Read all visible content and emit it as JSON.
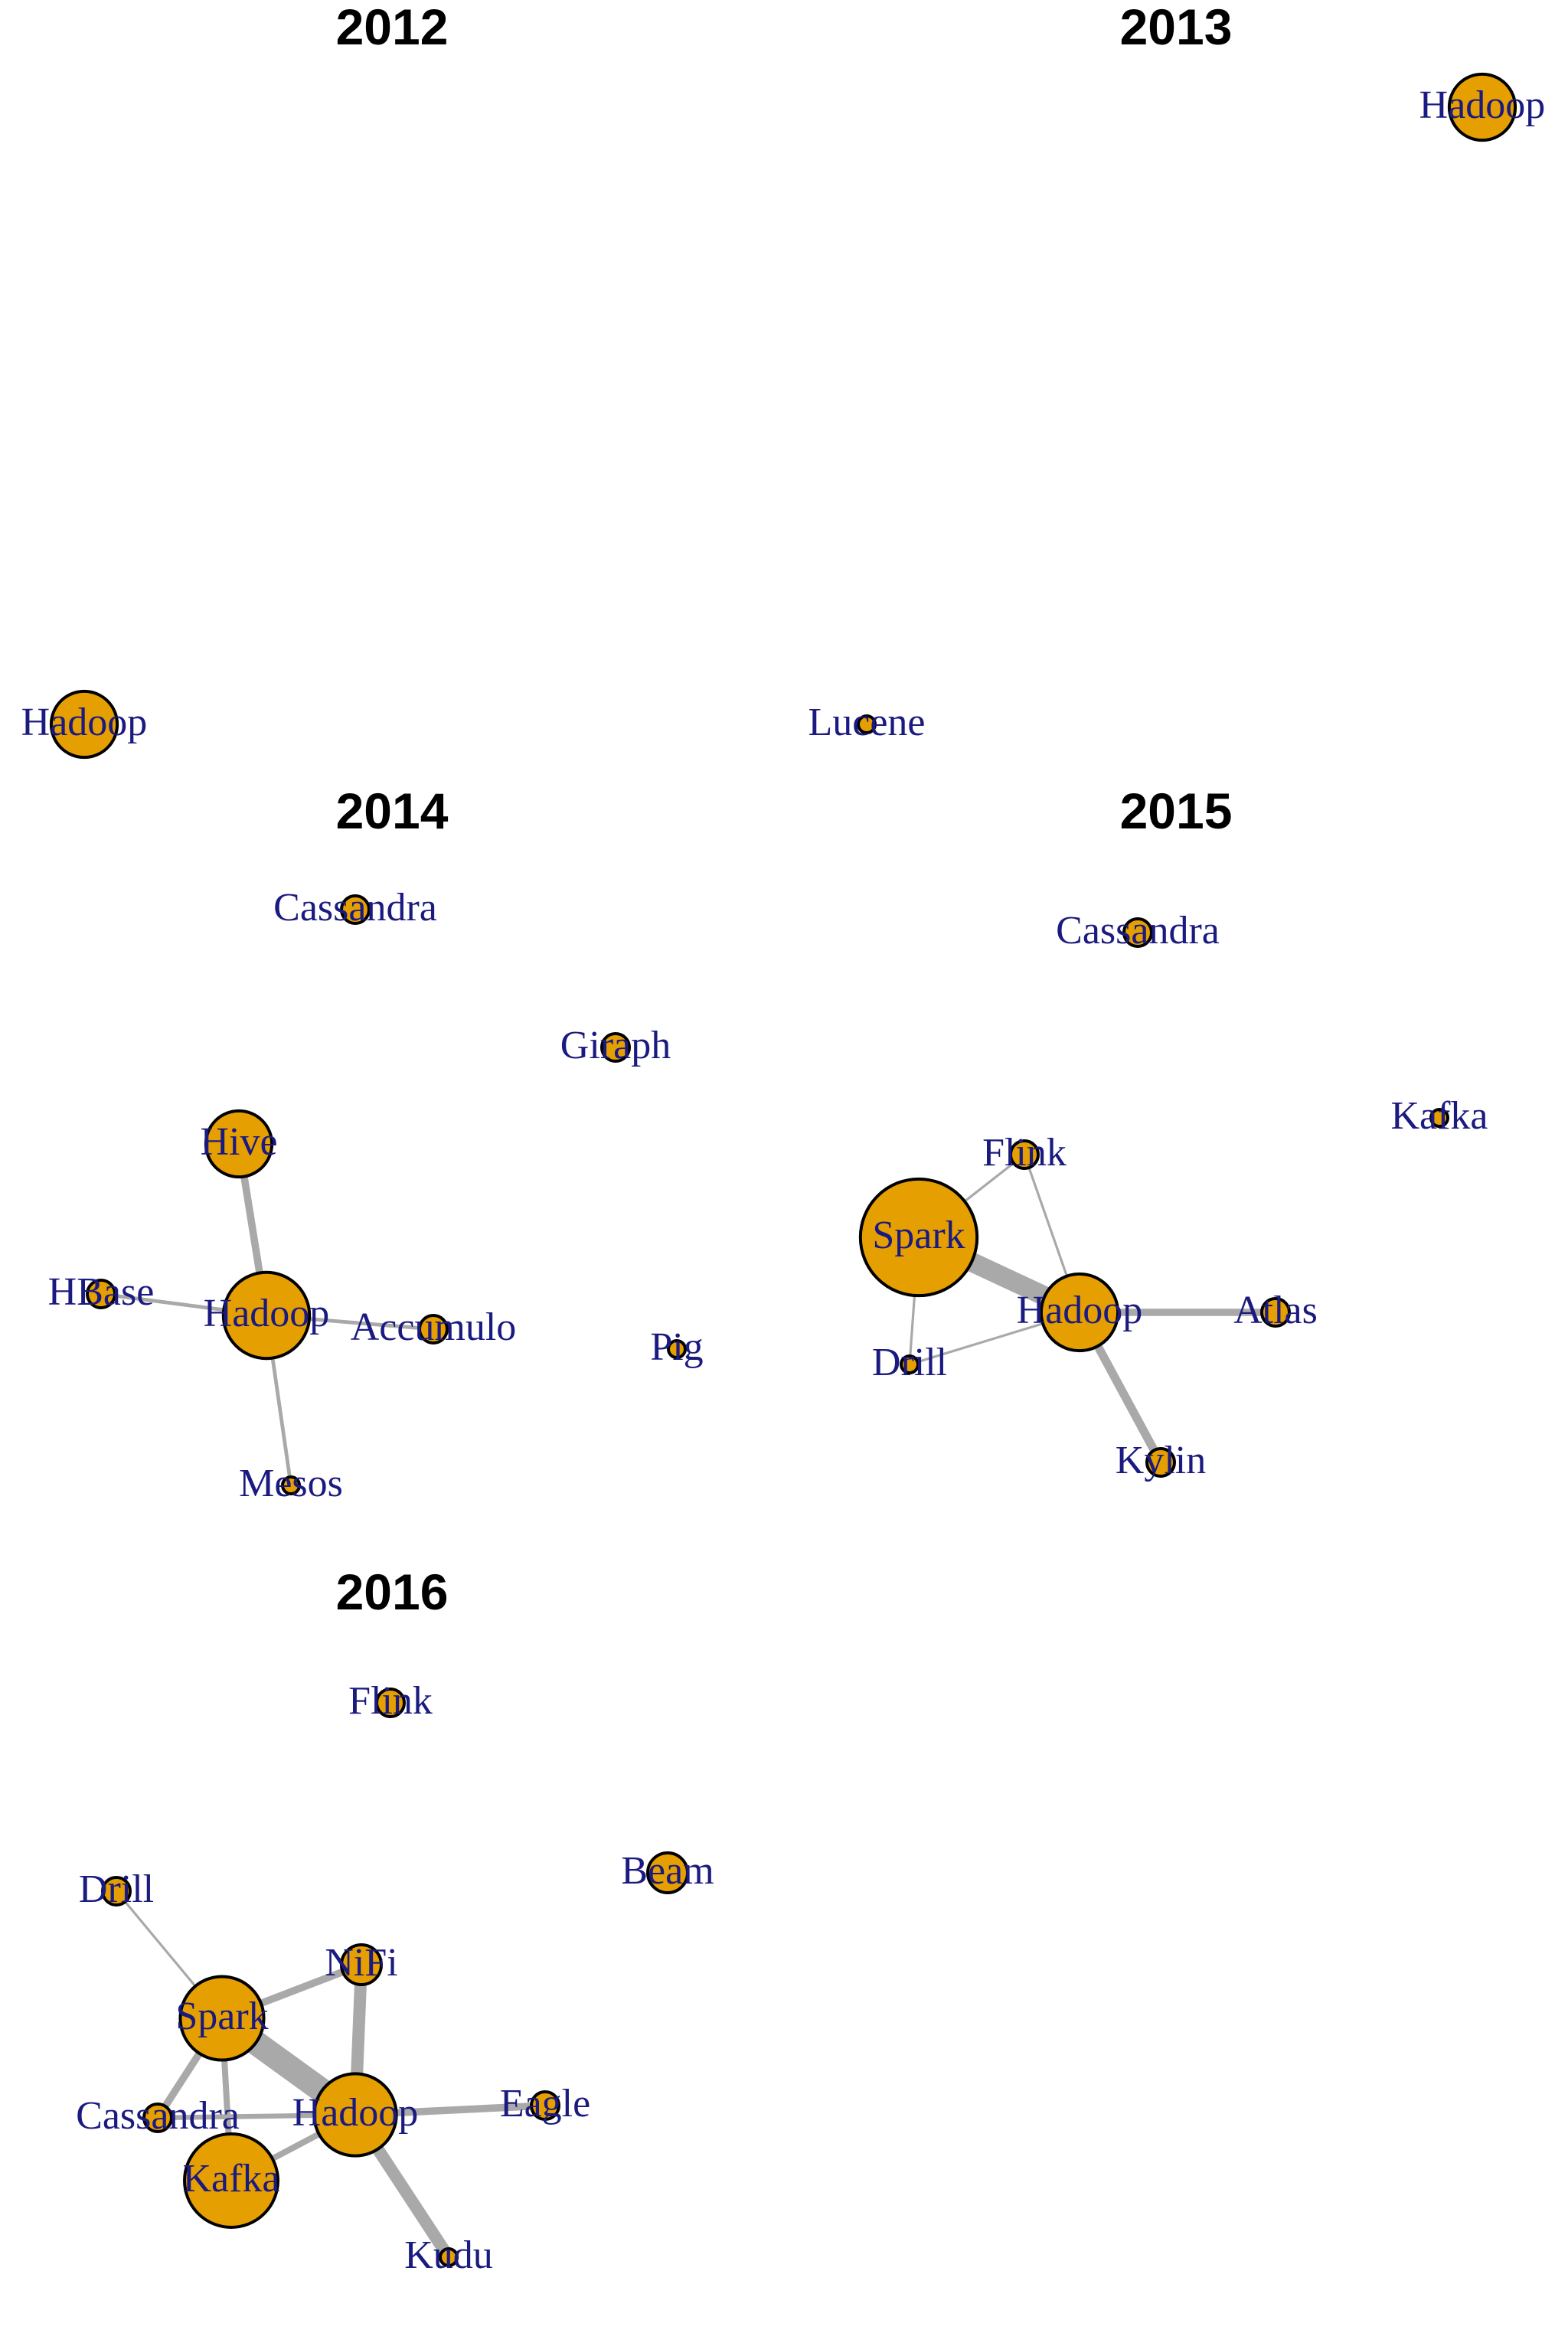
{
  "node_style": {
    "fill": "#E69F00",
    "stroke": "#000000",
    "label_color": "#1A1A80",
    "edge_color": "#A9A9A9"
  },
  "panels": [
    {
      "title": "2012",
      "nodes": [
        {
          "id": "hadoop",
          "label": "Hadoop",
          "size": 1.0
        }
      ],
      "edges": []
    },
    {
      "title": "2013",
      "nodes": [
        {
          "id": "hadoop",
          "label": "Hadoop",
          "size": 1.0
        },
        {
          "id": "lucene",
          "label": "Lucene",
          "size": 0.28
        }
      ],
      "edges": []
    },
    {
      "title": "2014",
      "nodes": [
        {
          "id": "cassandra",
          "label": "Cassandra",
          "size": 0.45
        },
        {
          "id": "giraph",
          "label": "Giraph",
          "size": 0.45
        },
        {
          "id": "hive",
          "label": "Hive",
          "size": 1.0
        },
        {
          "id": "hbase",
          "label": "HBase",
          "size": 0.45
        },
        {
          "id": "hadoop",
          "label": "Hadoop",
          "size": 1.7
        },
        {
          "id": "accumulo",
          "label": "Accumulo",
          "size": 0.45
        },
        {
          "id": "pig",
          "label": "Pig",
          "size": 0.28
        },
        {
          "id": "mesos",
          "label": "Mesos",
          "size": 0.28
        }
      ],
      "edges": [
        {
          "from": "hive",
          "to": "hadoop",
          "weight": 3
        },
        {
          "from": "hbase",
          "to": "hadoop",
          "weight": 1.5
        },
        {
          "from": "hadoop",
          "to": "accumulo",
          "weight": 1.5
        },
        {
          "from": "hadoop",
          "to": "mesos",
          "weight": 1.5
        }
      ]
    },
    {
      "title": "2015",
      "nodes": [
        {
          "id": "cassandra",
          "label": "Cassandra",
          "size": 0.45
        },
        {
          "id": "kafka",
          "label": "Kafka",
          "size": 0.28
        },
        {
          "id": "flink",
          "label": "Flink",
          "size": 0.45
        },
        {
          "id": "spark",
          "label": "Spark",
          "size": 2.5
        },
        {
          "id": "hadoop",
          "label": "Hadoop",
          "size": 1.35
        },
        {
          "id": "atlas",
          "label": "Atlas",
          "size": 0.45
        },
        {
          "id": "drill",
          "label": "Drill",
          "size": 0.28
        },
        {
          "id": "kylin",
          "label": "Kylin",
          "size": 0.45
        }
      ],
      "edges": [
        {
          "from": "spark",
          "to": "flink",
          "weight": 1
        },
        {
          "from": "flink",
          "to": "hadoop",
          "weight": 1
        },
        {
          "from": "spark",
          "to": "hadoop",
          "weight": 8
        },
        {
          "from": "spark",
          "to": "drill",
          "weight": 1
        },
        {
          "from": "drill",
          "to": "hadoop",
          "weight": 1
        },
        {
          "from": "hadoop",
          "to": "atlas",
          "weight": 3
        },
        {
          "from": "hadoop",
          "to": "kylin",
          "weight": 3.5
        }
      ]
    },
    {
      "title": "2016",
      "nodes": [
        {
          "id": "flink",
          "label": "Flink",
          "size": 0.45
        },
        {
          "id": "beam",
          "label": "Beam",
          "size": 0.65
        },
        {
          "id": "drill",
          "label": "Drill",
          "size": 0.45
        },
        {
          "id": "nifi",
          "label": "NiFi",
          "size": 0.65
        },
        {
          "id": "spark",
          "label": "Spark",
          "size": 1.6
        },
        {
          "id": "cassandra",
          "label": "Cassandra",
          "size": 0.45
        },
        {
          "id": "hadoop",
          "label": "Hadoop",
          "size": 1.55
        },
        {
          "id": "eagle",
          "label": "Eagle",
          "size": 0.45
        },
        {
          "id": "kafka",
          "label": "Kafka",
          "size": 2.0
        },
        {
          "id": "kudu",
          "label": "Kudu",
          "size": 0.28
        }
      ],
      "edges": [
        {
          "from": "drill",
          "to": "spark",
          "weight": 1
        },
        {
          "from": "spark",
          "to": "nifi",
          "weight": 3
        },
        {
          "from": "nifi",
          "to": "hadoop",
          "weight": 5
        },
        {
          "from": "spark",
          "to": "hadoop",
          "weight": 10
        },
        {
          "from": "spark",
          "to": "cassandra",
          "weight": 3
        },
        {
          "from": "spark",
          "to": "kafka",
          "weight": 2.5
        },
        {
          "from": "cassandra",
          "to": "hadoop",
          "weight": 2
        },
        {
          "from": "hadoop",
          "to": "kafka",
          "weight": 2.5
        },
        {
          "from": "hadoop",
          "to": "eagle",
          "weight": 3
        },
        {
          "from": "hadoop",
          "to": "kudu",
          "weight": 5
        }
      ]
    }
  ]
}
